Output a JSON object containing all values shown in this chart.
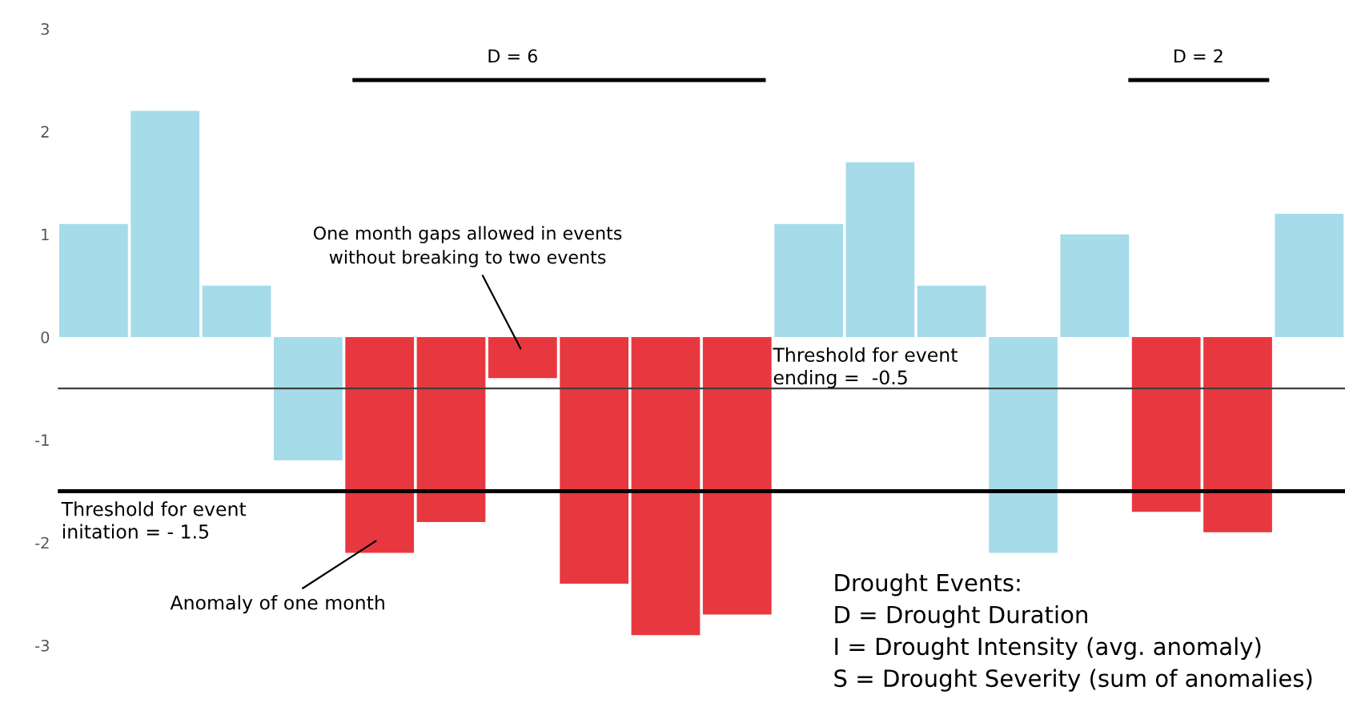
{
  "chart_data": {
    "type": "bar",
    "categories": [
      null,
      null,
      null,
      null,
      null,
      null,
      null,
      null,
      null,
      null,
      null,
      null,
      null,
      null,
      null,
      null,
      null,
      null
    ],
    "values": [
      1.1,
      2.2,
      0.5,
      -1.2,
      -2.1,
      -1.8,
      -0.4,
      -2.4,
      -2.9,
      -2.7,
      1.1,
      1.7,
      0.5,
      -2.1,
      1.0,
      -1.7,
      -1.9,
      1.2
    ],
    "colors": [
      "#a6dbea",
      "#a6dbea",
      "#a6dbea",
      "#a6dbea",
      "#e8383f",
      "#e8383f",
      "#e8383f",
      "#e8383f",
      "#e8383f",
      "#e8383f",
      "#a6dbea",
      "#a6dbea",
      "#a6dbea",
      "#a6dbea",
      "#a6dbea",
      "#e8383f",
      "#e8383f",
      "#a6dbea"
    ],
    "ylim": [
      -3,
      3
    ],
    "yticks": [
      -3,
      -2,
      -1,
      0,
      1,
      2,
      3
    ],
    "ref_lines": [
      {
        "axis": "y",
        "value": -0.5,
        "label": "Threshold for event\nending =  -0.5",
        "color": "#404040"
      },
      {
        "axis": "y",
        "value": -1.5,
        "label": "Threshold for event\ninitation = - 1.5",
        "color": "#000000"
      }
    ],
    "annotations": [
      "D = 6",
      "D = 2",
      "One month gaps allowed in events\nwithout breaking to two events",
      "Anomaly of one month",
      "Drought Events:",
      "D = Drought Duration",
      "I = Drought Intensity (avg. anomaly)",
      "S = Drought Severity (sum of anomalies)"
    ],
    "grid": false
  }
}
